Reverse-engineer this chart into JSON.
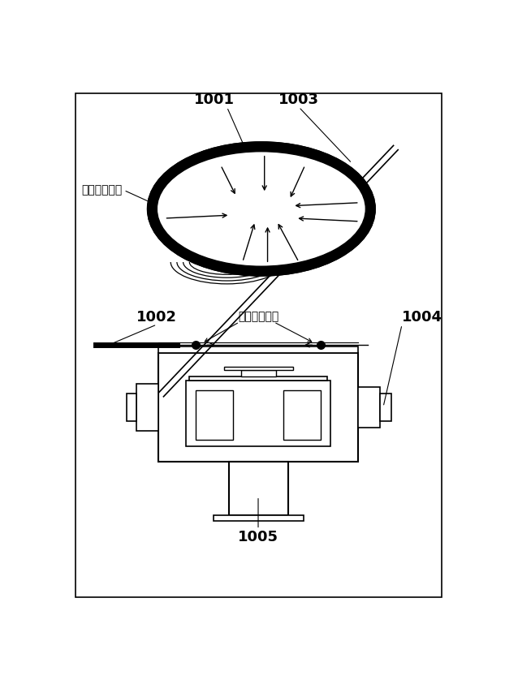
{
  "bg_color": "#ffffff",
  "border_color": "#000000",
  "line_color": "#000000",
  "label_1001": "1001",
  "label_1002": "1002",
  "label_1003": "1003",
  "label_1004": "1004",
  "label_1005": "1005",
  "label_gas1": "ガス導入方向",
  "label_gas2": "ガス導入方向",
  "fig_width": 6.22,
  "fig_height": 8.43
}
